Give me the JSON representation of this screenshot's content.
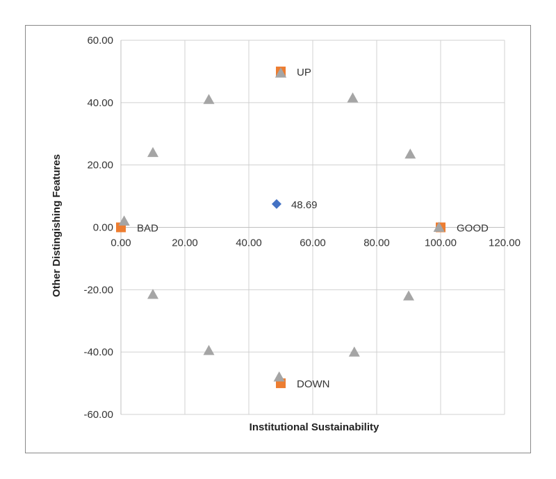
{
  "chart_data": {
    "type": "scatter",
    "xlabel": "Institutional Sustainability",
    "ylabel": "Other Distingishing Features",
    "xlim": [
      0,
      120
    ],
    "ylim": [
      -60,
      60
    ],
    "x_ticks": [
      "0.00",
      "20.00",
      "40.00",
      "60.00",
      "80.00",
      "100.00",
      "120.00"
    ],
    "y_ticks": [
      "60.00",
      "40.00",
      "20.00",
      "0.00",
      "-20.00",
      "-40.00",
      "-60.00"
    ],
    "grid": true,
    "legend": "none",
    "colors": {
      "value": "#4472C4",
      "reference": "#ED7D31",
      "circle": "#A5A5A5"
    },
    "series": [
      {
        "marker": "diamond",
        "points": [
          {
            "x": 48.69,
            "y": 7.5,
            "label": "48.69"
          }
        ]
      },
      {
        "marker": "square",
        "points": [
          {
            "x": 0,
            "y": 0,
            "label": "BAD"
          },
          {
            "x": 50,
            "y": 50,
            "label": "UP"
          },
          {
            "x": 100,
            "y": 0,
            "label": "GOOD"
          },
          {
            "x": 50,
            "y": -50,
            "label": "DOWN"
          }
        ]
      },
      {
        "marker": "triangle",
        "points": [
          {
            "x": 1,
            "y": 2
          },
          {
            "x": 10,
            "y": 24
          },
          {
            "x": 27.5,
            "y": 41
          },
          {
            "x": 50,
            "y": 49.5
          },
          {
            "x": 72.5,
            "y": 41.5
          },
          {
            "x": 90.5,
            "y": 23.5
          },
          {
            "x": 99.5,
            "y": 0
          },
          {
            "x": 90,
            "y": -22
          },
          {
            "x": 73,
            "y": -40
          },
          {
            "x": 49.5,
            "y": -48
          },
          {
            "x": 27.5,
            "y": -39.5
          },
          {
            "x": 10,
            "y": -21.5
          }
        ]
      }
    ]
  }
}
